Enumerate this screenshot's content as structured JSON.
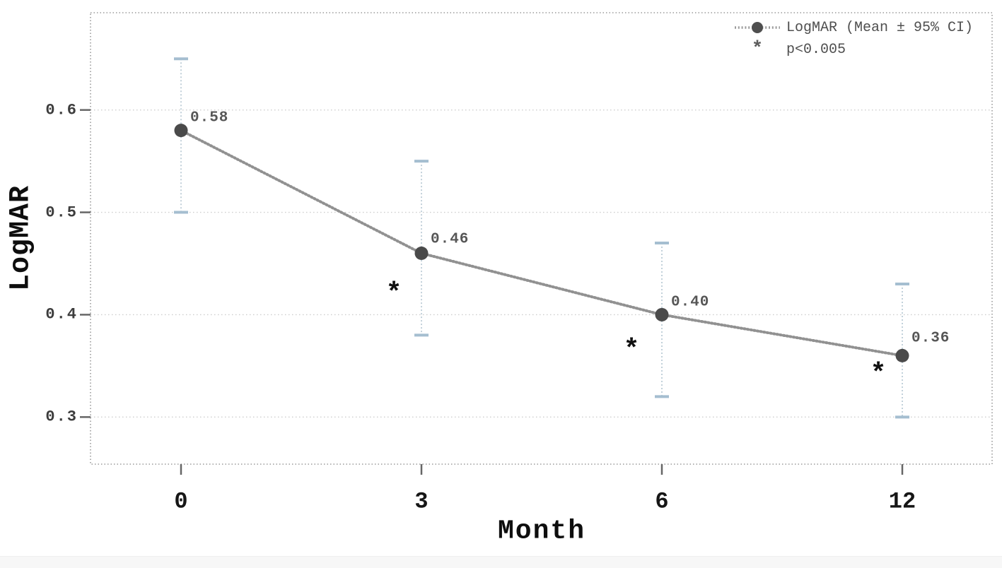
{
  "chart_data": {
    "type": "line",
    "title": "",
    "xlabel": "Month",
    "ylabel": "LogMAR",
    "categories": [
      "0",
      "3",
      "6",
      "12"
    ],
    "series": [
      {
        "name": "LogMAR (Mean ± 95% CI)",
        "values": [
          0.58,
          0.46,
          0.4,
          0.36
        ],
        "labels": [
          "0.58",
          "0.46",
          "0.40",
          "0.36"
        ],
        "ci_low": [
          0.5,
          0.38,
          0.32,
          0.3
        ],
        "ci_high": [
          0.65,
          0.55,
          0.47,
          0.43
        ],
        "significant": [
          false,
          true,
          true,
          true
        ]
      }
    ],
    "yticks": [
      0.3,
      0.4,
      0.5,
      0.6
    ],
    "ytick_labels": [
      "0.3",
      "0.4",
      "0.5",
      "0.6"
    ],
    "ylim": [
      0.254,
      0.695
    ],
    "grid": true,
    "line_style": "dotted",
    "marker": "circle",
    "error_bars": "95% CI",
    "sig_marker": "*",
    "legend": {
      "position": "top-right",
      "entries": [
        {
          "marker": "dotted-line-circle",
          "label": "LogMAR (Mean ± 95% CI)"
        },
        {
          "marker": "asterisk",
          "label": "p<0.005"
        }
      ]
    }
  },
  "colors": {
    "background": "#ffffff",
    "marker": "#4a4a4a",
    "line": "#919191",
    "error_bar_cap": "#a5bed0",
    "error_bar_line": "#bcccd6",
    "grid": "#cdcdcd",
    "frame": "#9a9a9a",
    "tick": "#666666",
    "value_label": "#565656",
    "legend_text": "#4f4f4f",
    "legend_circle": "#4f4f4f",
    "legend_line": "#9c9c9c"
  }
}
